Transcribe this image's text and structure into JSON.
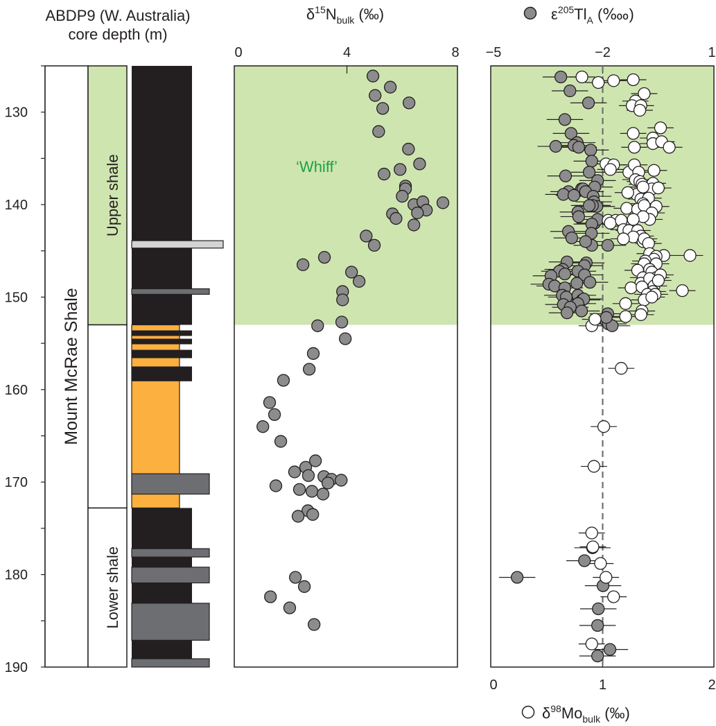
{
  "header": {
    "core_line1": "ABDP9 (W. Australia)",
    "core_line2": "core depth (m)",
    "n_title": {
      "delta": "δ",
      "sup": "15",
      "main": "N",
      "sub": "bulk",
      "unit": " (‰)"
    },
    "tl_title": {
      "eps": "ε",
      "sup": "205",
      "main": "Tl",
      "sub": "A",
      "unit": " (‱)"
    },
    "mo_title": {
      "delta": "δ",
      "sup": "98",
      "main": "Mo",
      "sub": "bulk",
      "unit": " (‰)"
    }
  },
  "colors": {
    "whiff_zone": "#cfe5b0",
    "whiff_text": "#1aa24a",
    "black_shale": "#231f20",
    "carbonate": "#fbb040",
    "grey_bed": "#6d6e71",
    "light_bed": "#d1d3d4",
    "tl_marker": "#8c8c8c",
    "mo_marker": "#ffffff"
  },
  "chart_data": [
    {
      "type": "column",
      "ylabel": "ABDP9 (W. Australia) core depth (m)",
      "ylim": [
        125,
        190
      ],
      "yticks": [
        "130",
        "140",
        "150",
        "160",
        "170",
        "180",
        "190"
      ],
      "formation": {
        "label": "Mount McRae Shale",
        "top": 125,
        "base": 190
      },
      "members": [
        {
          "label": "Upper shale",
          "top": 125,
          "base": 153,
          "highlight": true
        },
        {
          "label": "",
          "top": 153,
          "base": 172.8,
          "highlight": false
        },
        {
          "label": "Lower shale",
          "top": 172.8,
          "base": 190,
          "highlight": false
        }
      ],
      "lithology": [
        {
          "type": "black_shale",
          "top": 125,
          "base": 153
        },
        {
          "type": "light_bed",
          "top": 143.9,
          "base": 144.7
        },
        {
          "type": "grey_bed",
          "top": 149.1,
          "base": 149.7
        },
        {
          "type": "carbonate",
          "top": 153,
          "base": 172.8
        },
        {
          "type": "black_shale",
          "top": 153.6,
          "base": 154.2
        },
        {
          "type": "black_shale",
          "top": 154.5,
          "base": 155.1
        },
        {
          "type": "black_shale",
          "top": 155.7,
          "base": 156.6
        },
        {
          "type": "black_shale",
          "top": 157.5,
          "base": 159.1
        },
        {
          "type": "grey_bed",
          "top": 169.1,
          "base": 171.3
        },
        {
          "type": "black_shale",
          "top": 172.8,
          "base": 190
        },
        {
          "type": "grey_bed",
          "top": 177.2,
          "base": 178.1
        },
        {
          "type": "grey_bed",
          "top": 179.2,
          "base": 180.9
        },
        {
          "type": "grey_bed",
          "top": 183.1,
          "base": 187.1
        },
        {
          "type": "grey_bed",
          "top": 189.1,
          "base": 190
        }
      ]
    },
    {
      "type": "scatter",
      "xlabel": "δ15Nbulk (‰)",
      "xlim": [
        0,
        8
      ],
      "xticks": [
        "0",
        "4",
        "8"
      ],
      "ylim": [
        125,
        190
      ],
      "shaded_zone": {
        "label": "‘Whiff’",
        "top": 125,
        "base": 153
      },
      "points": [
        [
          4.96,
          126.1
        ],
        [
          5.6,
          127.3
        ],
        [
          5.04,
          128.2
        ],
        [
          6.29,
          129.0
        ],
        [
          5.32,
          129.6
        ],
        [
          5.17,
          132.1
        ],
        [
          6.27,
          134.0
        ],
        [
          6.68,
          135.6
        ],
        [
          5.37,
          136.7
        ],
        [
          5.96,
          136.2
        ],
        [
          6.16,
          138.0
        ],
        [
          6.16,
          138.3
        ],
        [
          6.04,
          139.1
        ],
        [
          6.47,
          140.0
        ],
        [
          6.8,
          139.7
        ],
        [
          6.93,
          140.6
        ],
        [
          6.6,
          140.9
        ],
        [
          7.54,
          139.8
        ],
        [
          5.68,
          141.0
        ],
        [
          5.81,
          141.5
        ],
        [
          6.47,
          142.2
        ],
        [
          4.71,
          143.4
        ],
        [
          5.01,
          144.4
        ],
        [
          3.17,
          145.7
        ],
        [
          2.38,
          146.5
        ],
        [
          4.17,
          147.3
        ],
        [
          4.45,
          148.3
        ],
        [
          3.84,
          149.4
        ],
        [
          3.84,
          150.3
        ],
        [
          3.81,
          152.7
        ],
        [
          2.92,
          153.1
        ],
        [
          3.94,
          154.5
        ],
        [
          2.76,
          156.1
        ],
        [
          2.61,
          157.8
        ],
        [
          1.66,
          159.0
        ],
        [
          1.15,
          161.4
        ],
        [
          1.33,
          162.7
        ],
        [
          0.9,
          164.0
        ],
        [
          1.56,
          165.6
        ],
        [
          2.84,
          167.7
        ],
        [
          2.48,
          168.4
        ],
        [
          2.07,
          168.9
        ],
        [
          2.58,
          169.3
        ],
        [
          3.15,
          169.4
        ],
        [
          3.43,
          169.7
        ],
        [
          3.79,
          169.8
        ],
        [
          3.3,
          170.1
        ],
        [
          1.38,
          170.4
        ],
        [
          2.25,
          170.8
        ],
        [
          2.71,
          171.0
        ],
        [
          3.12,
          171.3
        ],
        [
          2.56,
          173.1
        ],
        [
          2.74,
          173.5
        ],
        [
          2.2,
          173.7
        ],
        [
          2.1,
          180.3
        ],
        [
          2.43,
          181.3
        ],
        [
          1.18,
          182.4
        ],
        [
          1.89,
          183.6
        ],
        [
          2.79,
          185.4
        ]
      ]
    },
    {
      "type": "scatter",
      "ylim": [
        125,
        190
      ],
      "reference_line": {
        "axis": "mo",
        "value": 1,
        "style": "dashed"
      },
      "series": [
        {
          "name": "ε205TlA (‱)",
          "axis": "top",
          "xlim": [
            -5,
            1
          ],
          "xticks": [
            "−5",
            "−2",
            "1"
          ],
          "marker": "filled-grey",
          "error_bar": 0.5,
          "points": [
            [
              -3.15,
              126.2
            ],
            [
              -2.9,
              127.7
            ],
            [
              -2.39,
              129.0
            ],
            [
              -3.04,
              130.8
            ],
            [
              -2.87,
              132.3
            ],
            [
              -2.7,
              133.3
            ],
            [
              -3.29,
              133.7
            ],
            [
              -2.79,
              133.6
            ],
            [
              -2.66,
              133.8
            ],
            [
              -2.33,
              134.1
            ],
            [
              -2.3,
              135.3
            ],
            [
              -3.02,
              136.9
            ],
            [
              -2.37,
              136.5
            ],
            [
              -2.14,
              137.4
            ],
            [
              -2.58,
              138.3
            ],
            [
              -2.54,
              138.3
            ],
            [
              -2.22,
              138.1
            ],
            [
              -2.94,
              138.6
            ],
            [
              -2.47,
              138.6
            ],
            [
              -3.08,
              138.9
            ],
            [
              -2.26,
              139.1
            ],
            [
              -2.79,
              139.0
            ],
            [
              -2.24,
              139.7
            ],
            [
              -2.16,
              140.2
            ],
            [
              -2.68,
              140.8
            ],
            [
              -2.66,
              141.3
            ],
            [
              -2.22,
              142.0
            ],
            [
              -2.28,
              140.1
            ],
            [
              -2.14,
              141.6
            ],
            [
              -2.37,
              140.1
            ],
            [
              -2.3,
              142.1
            ],
            [
              -2.31,
              143.1
            ],
            [
              -2.3,
              144.4
            ],
            [
              -2.94,
              142.9
            ],
            [
              -2.85,
              143.6
            ],
            [
              -2.47,
              144.0
            ],
            [
              -1.86,
              144.4
            ],
            [
              -2.98,
              146.2
            ],
            [
              -2.45,
              146.3
            ],
            [
              -3.1,
              147.0
            ],
            [
              -2.5,
              146.6
            ],
            [
              -3.19,
              147.2
            ],
            [
              -2.68,
              147.2
            ],
            [
              -3.42,
              147.7
            ],
            [
              -3.04,
              147.5
            ],
            [
              -2.5,
              147.6
            ],
            [
              -3.48,
              148.6
            ],
            [
              -2.71,
              148.5
            ],
            [
              -2.35,
              148.4
            ],
            [
              -3.32,
              148.8
            ],
            [
              -3.04,
              149.0
            ],
            [
              -3.11,
              149.8
            ],
            [
              -3.0,
              150.0
            ],
            [
              -2.68,
              149.8
            ],
            [
              -2.56,
              150.3
            ],
            [
              -3.08,
              150.8
            ],
            [
              -2.52,
              150.2
            ],
            [
              -2.68,
              150.7
            ],
            [
              -2.89,
              151.1
            ],
            [
              -2.58,
              151.5
            ],
            [
              -2.98,
              151.7
            ],
            [
              -1.86,
              151.8
            ],
            [
              -1.9,
              152.6
            ],
            [
              -1.84,
              152.9
            ],
            [
              -1.74,
              153.1
            ],
            [
              -1.9,
              152.2
            ],
            [
              -2.28,
              177.1
            ],
            [
              -2.5,
              178.5
            ],
            [
              -4.35,
              180.3
            ],
            [
              -1.99,
              181.2
            ],
            [
              -2.12,
              183.7
            ],
            [
              -2.14,
              185.5
            ],
            [
              -1.8,
              188.1
            ],
            [
              -2.14,
              188.8
            ]
          ]
        },
        {
          "name": "δ98Mobulk (‰)",
          "axis": "bottom",
          "xlim": [
            0,
            2
          ],
          "xticks": [
            "0",
            "1",
            "2"
          ],
          "marker": "open-white",
          "error_bar": 0.12,
          "points": [
            [
              0.81,
              126.2
            ],
            [
              1.1,
              126.6
            ],
            [
              0.96,
              126.8
            ],
            [
              1.28,
              126.5
            ],
            [
              1.38,
              128.0
            ],
            [
              1.3,
              128.8
            ],
            [
              1.27,
              129.3
            ],
            [
              1.35,
              129.3
            ],
            [
              1.34,
              129.8
            ],
            [
              1.53,
              131.7
            ],
            [
              1.28,
              132.3
            ],
            [
              1.46,
              132.8
            ],
            [
              1.46,
              133.4
            ],
            [
              1.54,
              133.2
            ],
            [
              1.61,
              133.8
            ],
            [
              1.29,
              133.8
            ],
            [
              1.03,
              135.6
            ],
            [
              1.1,
              135.7
            ],
            [
              1.07,
              136.2
            ],
            [
              1.24,
              136.5
            ],
            [
              1.29,
              135.7
            ],
            [
              1.33,
              136.5
            ],
            [
              1.47,
              136.3
            ],
            [
              1.3,
              137.3
            ],
            [
              1.34,
              137.5
            ],
            [
              1.36,
              137.8
            ],
            [
              1.46,
              137.7
            ],
            [
              1.45,
              138.3
            ],
            [
              1.31,
              138.9
            ],
            [
              1.37,
              138.1
            ],
            [
              1.51,
              138.2
            ],
            [
              1.23,
              138.7
            ],
            [
              1.35,
              139.4
            ],
            [
              1.42,
              139.3
            ],
            [
              1.37,
              139.9
            ],
            [
              1.22,
              140.4
            ],
            [
              1.32,
              140.5
            ],
            [
              1.38,
              140.1
            ],
            [
              1.49,
              140.2
            ],
            [
              1.45,
              140.9
            ],
            [
              1.43,
              141.6
            ],
            [
              1.37,
              141.3
            ],
            [
              1.28,
              141.6
            ],
            [
              1.05,
              141.7
            ],
            [
              1.12,
              141.7
            ],
            [
              1.07,
              142.0
            ],
            [
              1.17,
              141.7
            ],
            [
              1.19,
              142.7
            ],
            [
              1.24,
              142.8
            ],
            [
              1.32,
              142.8
            ],
            [
              1.35,
              143.4
            ],
            [
              1.28,
              143.5
            ],
            [
              1.37,
              144.0
            ],
            [
              1.38,
              143.7
            ],
            [
              1.42,
              144.2
            ],
            [
              1.19,
              143.7
            ],
            [
              1.8,
              145.5
            ],
            [
              1.43,
              145.3
            ],
            [
              1.56,
              145.5
            ],
            [
              1.49,
              145.6
            ],
            [
              1.47,
              145.9
            ],
            [
              1.39,
              146.1
            ],
            [
              1.38,
              146.4
            ],
            [
              1.49,
              146.4
            ],
            [
              1.32,
              147.1
            ],
            [
              1.43,
              147.0
            ],
            [
              1.37,
              147.9
            ],
            [
              1.45,
              147.3
            ],
            [
              1.49,
              147.9
            ],
            [
              1.53,
              147.6
            ],
            [
              1.35,
              148.5
            ],
            [
              1.43,
              148.0
            ],
            [
              1.47,
              148.8
            ],
            [
              1.26,
              149.0
            ],
            [
              1.36,
              148.9
            ],
            [
              1.51,
              148.2
            ],
            [
              1.73,
              149.3
            ],
            [
              1.46,
              149.4
            ],
            [
              1.41,
              149.7
            ],
            [
              1.21,
              150.7
            ],
            [
              1.38,
              150.3
            ],
            [
              1.48,
              149.7
            ],
            [
              1.45,
              150.0
            ],
            [
              1.36,
              151.5
            ],
            [
              1.35,
              151.9
            ],
            [
              1.21,
              152.1
            ],
            [
              0.9,
              153.1
            ],
            [
              0.93,
              152.4
            ],
            [
              1.17,
              157.7
            ],
            [
              1.01,
              164.0
            ],
            [
              0.92,
              168.3
            ],
            [
              0.9,
              175.5
            ],
            [
              0.91,
              177.0
            ],
            [
              0.98,
              178.8
            ],
            [
              1.03,
              180.3
            ],
            [
              1.1,
              182.4
            ],
            [
              0.9,
              187.5
            ]
          ]
        }
      ]
    }
  ]
}
